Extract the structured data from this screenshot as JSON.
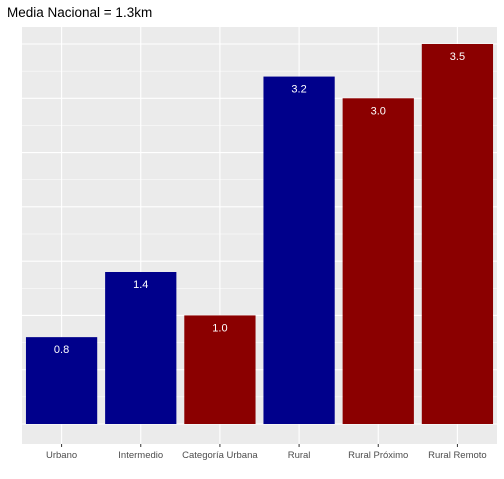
{
  "chart_data": {
    "type": "bar",
    "title": "Media Nacional = 1.3km",
    "xlabel": "",
    "ylabel": "",
    "categories": [
      "Urbano",
      "Intermedio",
      "Categoría Urbana",
      "Rural",
      "Rural Próximo",
      "Rural Remoto"
    ],
    "values": [
      0.8,
      1.4,
      1.0,
      3.2,
      3.0,
      3.5
    ],
    "value_labels": [
      "0.8",
      "1.4",
      "1.0",
      "3.2",
      "3.0",
      "3.5"
    ],
    "bar_colors": [
      "#00008b",
      "#00008b",
      "#8b0000",
      "#00008b",
      "#8b0000",
      "#8b0000"
    ],
    "ylim": [
      0,
      3.7
    ],
    "y_tick_labels_shown": false,
    "grid": true,
    "panel_background": "#ebebeb",
    "grid_color": "#ffffff",
    "value_label_color": "#ffffff"
  }
}
